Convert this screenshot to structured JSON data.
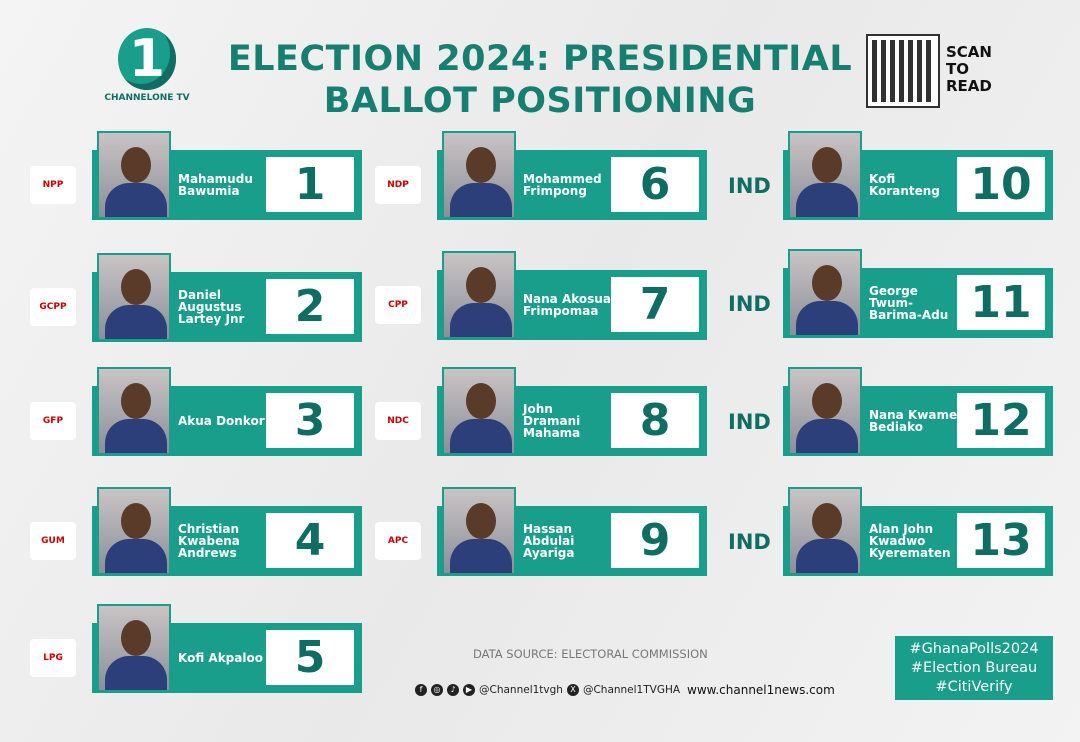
{
  "brand": {
    "logo_mark": "1",
    "logo_text": "CHANNELONE TV"
  },
  "title": "ELECTION 2024: PRESIDENTIAL BALLOT POSITIONING",
  "qr": {
    "label": "SCAN TO READ"
  },
  "accent": "#1a9e8c",
  "candidates": [
    {
      "position": "1",
      "name": "Mahamudu Bawumia",
      "party": "NPP"
    },
    {
      "position": "2",
      "name": "Daniel Augustus Lartey Jnr",
      "party": "GCPP"
    },
    {
      "position": "3",
      "name": "Akua Donkor",
      "party": "GFP"
    },
    {
      "position": "4",
      "name": "Christian Kwabena Andrews",
      "party": "GUM"
    },
    {
      "position": "5",
      "name": "Kofi Akpaloo",
      "party": "LPG"
    },
    {
      "position": "6",
      "name": "Mohammed Frimpong",
      "party": "NDP"
    },
    {
      "position": "7",
      "name": "Nana Akosua Frimpomaa",
      "party": "CPP"
    },
    {
      "position": "8",
      "name": "John Dramani Mahama",
      "party": "NDC"
    },
    {
      "position": "9",
      "name": "Hassan Abdulai Ayariga",
      "party": "APC"
    },
    {
      "position": "10",
      "name": "Kofi Koranteng",
      "party": "IND"
    },
    {
      "position": "11",
      "name": "George Twum-Barima-Adu",
      "party": "IND"
    },
    {
      "position": "12",
      "name": "Nana Kwame Bediako",
      "party": "IND"
    },
    {
      "position": "13",
      "name": "Alan John Kwadwo Kyerematen",
      "party": "IND"
    }
  ],
  "footer": {
    "source": "DATA SOURCE: ELECTORAL COMMISSION",
    "handle1": "@Channel1tvgh",
    "handle2": "@Channel1TVGHA",
    "website": "www.channel1news.com",
    "hashtags": [
      "#GhanaPolls2024",
      "#Election Bureau",
      "#CitiVerify"
    ]
  }
}
